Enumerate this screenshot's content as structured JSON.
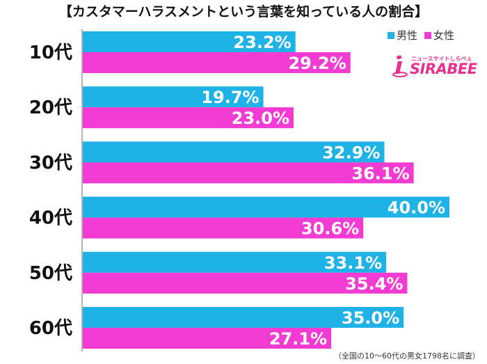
{
  "title": "【カスタマーハラスメントという言葉を知っている人の割合】",
  "legend": {
    "male": "男性",
    "female": "女性"
  },
  "logo": {
    "tagline": "ニュースサイトしらべぇ",
    "wordmark": "SIRABEE"
  },
  "note": "（全国の10〜60代の男女1798名に調査）",
  "colors": {
    "male": "#1eb2e6",
    "female": "#f23bd3",
    "logo": "#e8308f"
  },
  "chart_data": {
    "type": "bar",
    "orientation": "horizontal",
    "categories": [
      "10代",
      "20代",
      "30代",
      "40代",
      "50代",
      "60代"
    ],
    "series": [
      {
        "name": "男性",
        "values": [
          23.2,
          19.7,
          32.9,
          40.0,
          33.1,
          35.0
        ],
        "labels": [
          "23.2%",
          "19.7%",
          "32.9%",
          "40.0%",
          "33.1%",
          "35.0%"
        ]
      },
      {
        "name": "女性",
        "values": [
          29.2,
          23.0,
          36.1,
          30.6,
          35.4,
          27.1
        ],
        "labels": [
          "29.2%",
          "23.0%",
          "36.1%",
          "30.6%",
          "35.4%",
          "27.1%"
        ]
      }
    ],
    "xlim": [
      0,
      42.5
    ],
    "grid": false,
    "legend_position": "top-right"
  }
}
